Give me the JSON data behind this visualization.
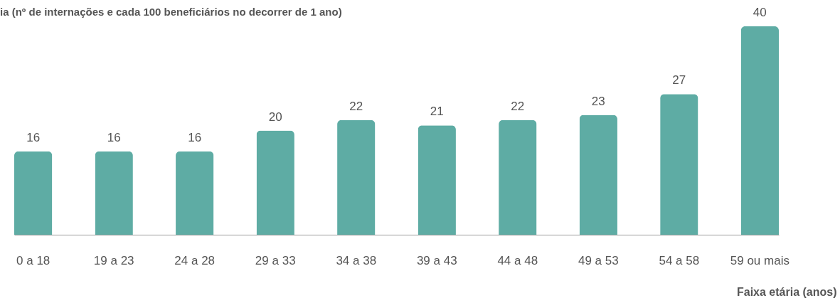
{
  "chart_data": {
    "type": "bar",
    "title": "ia (nº de internações e cada 100 beneficiários no decorrer de 1 ano)",
    "xlabel": "Faixa etária (anos)",
    "categories": [
      "0 a 18",
      "19 a 23",
      "24 a 28",
      "29 a 33",
      "34 a 38",
      "39 a 43",
      "44 a 48",
      "49 a 53",
      "54 a 58",
      "59 ou mais"
    ],
    "values": [
      16,
      16,
      16,
      20,
      22,
      21,
      22,
      23,
      27,
      40
    ],
    "color": "#5eaca4",
    "data_labels": true,
    "grid": false
  }
}
